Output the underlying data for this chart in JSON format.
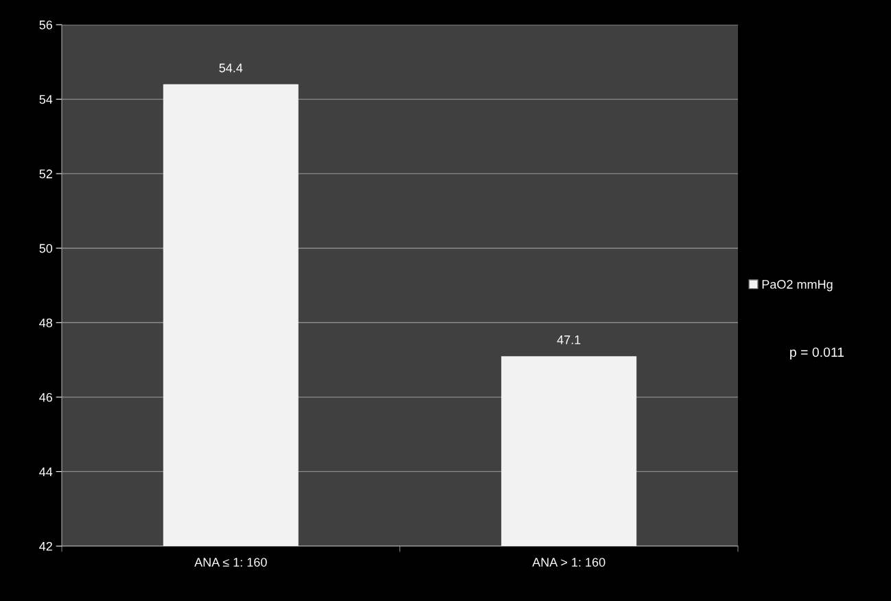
{
  "chart_data": {
    "type": "bar",
    "categories": [
      "ANA ≤ 1: 160",
      "ANA > 1: 160"
    ],
    "series": [
      {
        "name": "PaO2 mmHg",
        "color": "#f2f2f2",
        "values": [
          54.4,
          47.1
        ]
      }
    ],
    "ylim": [
      42,
      56
    ],
    "yticks": [
      42,
      44,
      46,
      48,
      50,
      52,
      54,
      56
    ],
    "grid": "y",
    "legend": "right",
    "data_labels": true,
    "annotations": [
      "p = 0.011"
    ]
  }
}
